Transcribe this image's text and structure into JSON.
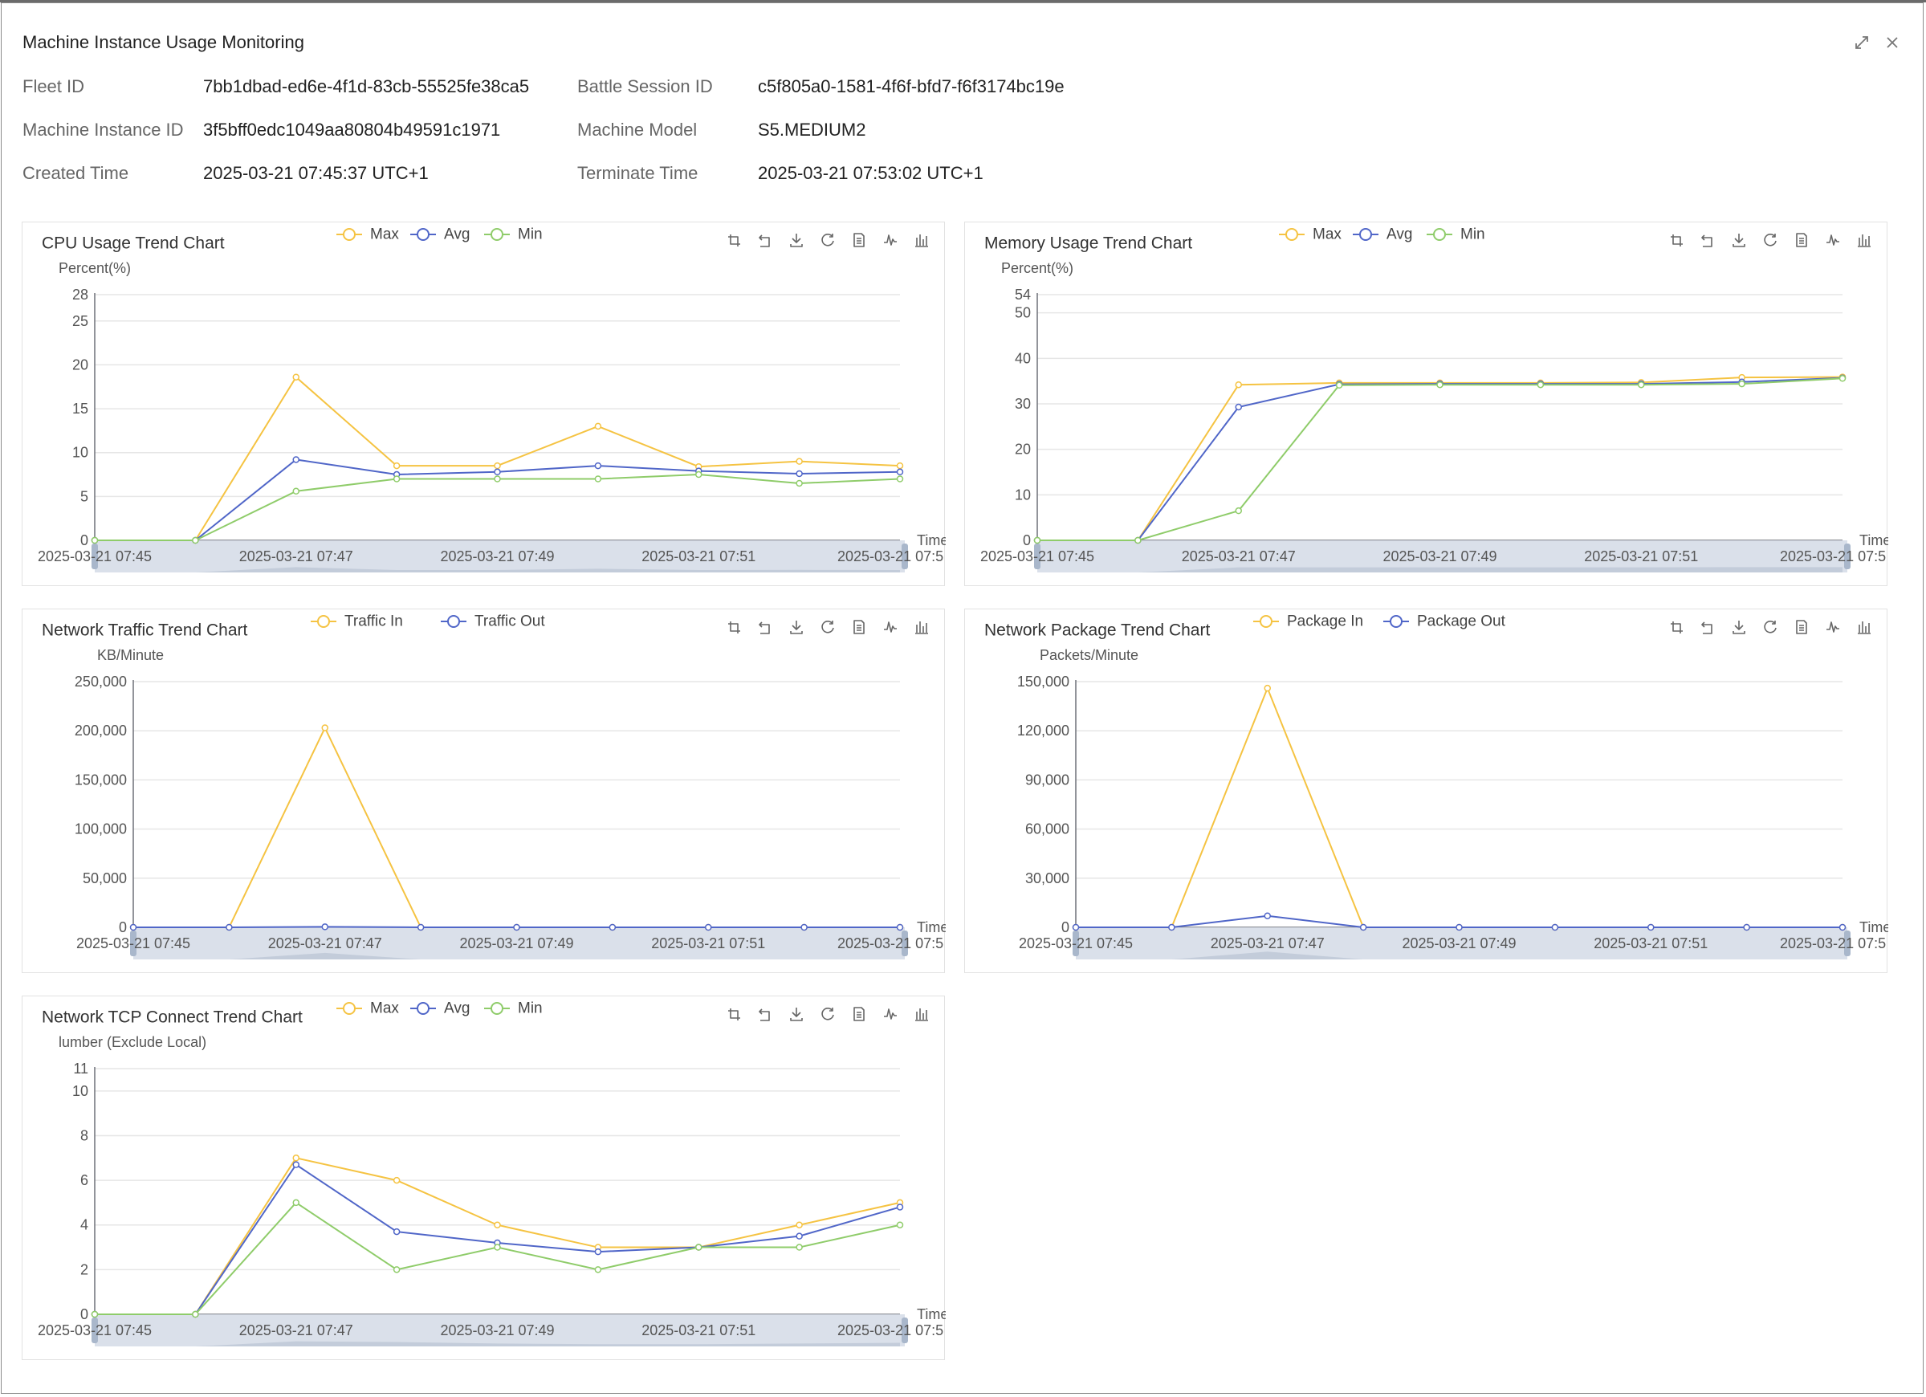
{
  "top_strip": {
    "text": ""
  },
  "modal": {
    "title": "Machine Instance Usage Monitoring",
    "icons": {
      "expand": "expand-icon",
      "close": "close-icon"
    }
  },
  "info": {
    "fleet_id": {
      "label": "Fleet ID",
      "value": "7bb1dbad-ed6e-4f1d-83cb-55525fe38ca5"
    },
    "battle_session_id": {
      "label": "Battle Session ID",
      "value": "c5f805a0-1581-4f6f-bfd7-f6f3174bc19e"
    },
    "machine_instance_id": {
      "label": "Machine Instance ID",
      "value": "3f5bff0edc1049aa80804b49591c1971"
    },
    "machine_model": {
      "label": "Machine Model",
      "value": "S5.MEDIUM2"
    },
    "created_time": {
      "label": "Created Time",
      "value": "2025-03-21 07:45:37 UTC+1"
    },
    "terminate_time": {
      "label": "Terminate Time",
      "value": "2025-03-21 07:53:02 UTC+1"
    }
  },
  "colors": {
    "max": "#f5c342",
    "avg": "#5066c8",
    "min": "#8fcc6a",
    "grid": "#e6e6e6",
    "axis": "#6e7079",
    "zoom_fill": "#d4dbe6"
  },
  "toolbox_icons": [
    "zoom-icon",
    "zoom-reset-icon",
    "download-icon",
    "refresh-icon",
    "data-view-icon",
    "line-chart-icon",
    "bar-chart-icon"
  ],
  "chart_data": [
    {
      "id": "cpu",
      "type": "line",
      "title": "CPU Usage Trend Chart",
      "ylabel": "Percent(%)",
      "xlabel": "Time",
      "ylim": [
        0,
        28
      ],
      "yticks": [
        0,
        5,
        10,
        15,
        20,
        25,
        28
      ],
      "x": [
        "2025-03-21 07:45",
        "2025-03-21 07:46",
        "2025-03-21 07:47",
        "2025-03-21 07:48",
        "2025-03-21 07:49",
        "2025-03-21 07:50",
        "2025-03-21 07:51",
        "2025-03-21 07:52",
        "2025-03-21 07:53"
      ],
      "xtick_labels": [
        "2025-03-21 07:45",
        "2025-03-21 07:47",
        "2025-03-21 07:49",
        "2025-03-21 07:51",
        "2025-03-21 07:5"
      ],
      "legend_position": "top-center",
      "series": [
        {
          "name": "Max",
          "color": "#f5c342",
          "values": [
            0,
            0,
            18.6,
            8.5,
            8.5,
            13.0,
            8.4,
            9.0,
            8.5
          ]
        },
        {
          "name": "Avg",
          "color": "#5066c8",
          "values": [
            0,
            0,
            9.2,
            7.5,
            7.8,
            8.5,
            7.9,
            7.6,
            7.8
          ]
        },
        {
          "name": "Min",
          "color": "#8fcc6a",
          "values": [
            0,
            0,
            5.6,
            7.0,
            7.0,
            7.0,
            7.5,
            6.5,
            7.0
          ]
        }
      ]
    },
    {
      "id": "mem",
      "type": "line",
      "title": "Memory Usage Trend Chart",
      "ylabel": "Percent(%)",
      "xlabel": "Time",
      "ylim": [
        0,
        54
      ],
      "yticks": [
        0,
        10,
        20,
        30,
        40,
        50,
        54
      ],
      "x": [
        "2025-03-21 07:45",
        "2025-03-21 07:46",
        "2025-03-21 07:47",
        "2025-03-21 07:48",
        "2025-03-21 07:49",
        "2025-03-21 07:50",
        "2025-03-21 07:51",
        "2025-03-21 07:52",
        "2025-03-21 07:53"
      ],
      "xtick_labels": [
        "2025-03-21 07:45",
        "2025-03-21 07:47",
        "2025-03-21 07:49",
        "2025-03-21 07:51",
        "2025-03-21 07:5"
      ],
      "legend_position": "top-center",
      "series": [
        {
          "name": "Max",
          "color": "#f5c342",
          "values": [
            0,
            0,
            34.2,
            34.6,
            34.6,
            34.6,
            34.7,
            35.8,
            35.9
          ]
        },
        {
          "name": "Avg",
          "color": "#5066c8",
          "values": [
            0,
            0,
            29.3,
            34.3,
            34.4,
            34.4,
            34.4,
            34.8,
            35.7
          ]
        },
        {
          "name": "Min",
          "color": "#8fcc6a",
          "values": [
            0,
            0,
            6.5,
            34.1,
            34.2,
            34.2,
            34.2,
            34.4,
            35.6
          ]
        }
      ]
    },
    {
      "id": "traffic",
      "type": "line",
      "title": "Network Traffic Trend Chart",
      "ylabel": "KB/Minute",
      "xlabel": "Time",
      "ylim": [
        0,
        250000
      ],
      "yticks": [
        0,
        50000,
        100000,
        150000,
        200000,
        250000
      ],
      "ytick_labels": [
        "0",
        "50,000",
        "100,000",
        "150,000",
        "200,000",
        "250,000"
      ],
      "x": [
        "2025-03-21 07:45",
        "2025-03-21 07:46",
        "2025-03-21 07:47",
        "2025-03-21 07:48",
        "2025-03-21 07:49",
        "2025-03-21 07:50",
        "2025-03-21 07:51",
        "2025-03-21 07:52",
        "2025-03-21 07:53"
      ],
      "xtick_labels": [
        "2025-03-21 07:45",
        "2025-03-21 07:47",
        "2025-03-21 07:49",
        "2025-03-21 07:51",
        "2025-03-21 07:5"
      ],
      "legend_position": "top-center",
      "series": [
        {
          "name": "Traffic In",
          "color": "#f5c342",
          "values": [
            0,
            0,
            203000,
            0,
            0,
            0,
            0,
            0,
            0
          ]
        },
        {
          "name": "Traffic Out",
          "color": "#5066c8",
          "values": [
            0,
            0,
            500,
            0,
            0,
            0,
            0,
            0,
            0
          ]
        }
      ]
    },
    {
      "id": "package",
      "type": "line",
      "title": "Network Package Trend Chart",
      "ylabel": "Packets/Minute",
      "xlabel": "Time",
      "ylim": [
        0,
        150000
      ],
      "yticks": [
        0,
        30000,
        60000,
        90000,
        120000,
        150000
      ],
      "ytick_labels": [
        "0",
        "30,000",
        "60,000",
        "90,000",
        "120,000",
        "150,000"
      ],
      "x": [
        "2025-03-21 07:45",
        "2025-03-21 07:46",
        "2025-03-21 07:47",
        "2025-03-21 07:48",
        "2025-03-21 07:49",
        "2025-03-21 07:50",
        "2025-03-21 07:51",
        "2025-03-21 07:52",
        "2025-03-21 07:53"
      ],
      "xtick_labels": [
        "2025-03-21 07:45",
        "2025-03-21 07:47",
        "2025-03-21 07:49",
        "2025-03-21 07:51",
        "2025-03-21 07:5"
      ],
      "legend_position": "top-center",
      "series": [
        {
          "name": "Package In",
          "color": "#f5c342",
          "values": [
            0,
            0,
            146000,
            0,
            0,
            0,
            0,
            0,
            0
          ]
        },
        {
          "name": "Package Out",
          "color": "#5066c8",
          "values": [
            0,
            0,
            7000,
            0,
            0,
            0,
            0,
            0,
            0
          ]
        }
      ]
    },
    {
      "id": "tcp",
      "type": "line",
      "title": "Network TCP Connect Trend Chart",
      "ylabel": "lumber (Exclude Local)",
      "xlabel": "Time",
      "ylim": [
        0,
        11
      ],
      "yticks": [
        0,
        2,
        4,
        6,
        8,
        10,
        11
      ],
      "x": [
        "2025-03-21 07:45",
        "2025-03-21 07:46",
        "2025-03-21 07:47",
        "2025-03-21 07:48",
        "2025-03-21 07:49",
        "2025-03-21 07:50",
        "2025-03-21 07:51",
        "2025-03-21 07:52",
        "2025-03-21 07:53"
      ],
      "xtick_labels": [
        "2025-03-21 07:45",
        "2025-03-21 07:47",
        "2025-03-21 07:49",
        "2025-03-21 07:51",
        "2025-03-21 07:5"
      ],
      "legend_position": "top-center",
      "series": [
        {
          "name": "Max",
          "color": "#f5c342",
          "values": [
            0,
            0,
            7.0,
            6.0,
            4.0,
            3.0,
            3.0,
            4.0,
            5.0
          ]
        },
        {
          "name": "Avg",
          "color": "#5066c8",
          "values": [
            0,
            0,
            6.7,
            3.7,
            3.2,
            2.8,
            3.0,
            3.5,
            4.8
          ]
        },
        {
          "name": "Min",
          "color": "#8fcc6a",
          "values": [
            0,
            0,
            5.0,
            2.0,
            3.0,
            2.0,
            3.0,
            3.0,
            4.0
          ]
        }
      ]
    }
  ]
}
